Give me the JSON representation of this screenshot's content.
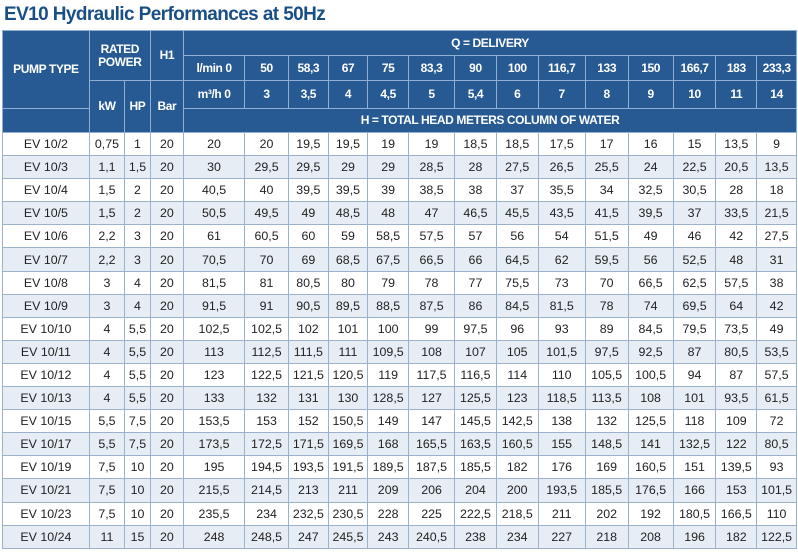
{
  "title": "EV10 Hydraulic Performances at 50Hz",
  "headers": {
    "pump_type": "PUMP TYPE",
    "rated_power": "RATED POWER",
    "h1": "H1",
    "delivery": "Q = DELIVERY",
    "lmin_label": "l/min 0",
    "m3h_label": "m³/h 0",
    "kw": "kW",
    "hp": "HP",
    "bar": "Bar",
    "head": "H = TOTAL HEAD METERS COLUMN OF WATER"
  },
  "flow_lmin": [
    "50",
    "58,3",
    "67",
    "75",
    "83,3",
    "90",
    "100",
    "116,7",
    "133",
    "150",
    "166,7",
    "183",
    "233,3"
  ],
  "flow_m3h": [
    "3",
    "3,5",
    "4",
    "4,5",
    "5",
    "5,4",
    "6",
    "7",
    "8",
    "9",
    "10",
    "11",
    "14"
  ],
  "rows": [
    [
      "EV 10/2",
      "0,75",
      "1",
      "20",
      "20",
      "20",
      "19,5",
      "19,5",
      "19",
      "19",
      "18,5",
      "18,5",
      "17,5",
      "17",
      "16",
      "15",
      "13,5",
      "9"
    ],
    [
      "EV 10/3",
      "1,1",
      "1,5",
      "20",
      "30",
      "29,5",
      "29,5",
      "29",
      "29",
      "28,5",
      "28",
      "27,5",
      "26,5",
      "25,5",
      "24",
      "22,5",
      "20,5",
      "13,5"
    ],
    [
      "EV 10/4",
      "1,5",
      "2",
      "20",
      "40,5",
      "40",
      "39,5",
      "39,5",
      "39",
      "38,5",
      "38",
      "37",
      "35,5",
      "34",
      "32,5",
      "30,5",
      "28",
      "18"
    ],
    [
      "EV 10/5",
      "1,5",
      "2",
      "20",
      "50,5",
      "49,5",
      "49",
      "48,5",
      "48",
      "47",
      "46,5",
      "45,5",
      "43,5",
      "41,5",
      "39,5",
      "37",
      "33,5",
      "21,5"
    ],
    [
      "EV 10/6",
      "2,2",
      "3",
      "20",
      "61",
      "60,5",
      "60",
      "59",
      "58,5",
      "57,5",
      "57",
      "56",
      "54",
      "51,5",
      "49",
      "46",
      "42",
      "27,5"
    ],
    [
      "EV 10/7",
      "2,2",
      "3",
      "20",
      "70,5",
      "70",
      "69",
      "68,5",
      "67,5",
      "66,5",
      "66",
      "64,5",
      "62",
      "59,5",
      "56",
      "52,5",
      "48",
      "31"
    ],
    [
      "EV 10/8",
      "3",
      "4",
      "20",
      "81,5",
      "81",
      "80,5",
      "80",
      "79",
      "78",
      "77",
      "75,5",
      "73",
      "70",
      "66,5",
      "62,5",
      "57,5",
      "38"
    ],
    [
      "EV 10/9",
      "3",
      "4",
      "20",
      "91,5",
      "91",
      "90,5",
      "89,5",
      "88,5",
      "87,5",
      "86",
      "84,5",
      "81,5",
      "78",
      "74",
      "69,5",
      "64",
      "42"
    ],
    [
      "EV 10/10",
      "4",
      "5,5",
      "20",
      "102,5",
      "102,5",
      "102",
      "101",
      "100",
      "99",
      "97,5",
      "96",
      "93",
      "89",
      "84,5",
      "79,5",
      "73,5",
      "49"
    ],
    [
      "EV 10/11",
      "4",
      "5,5",
      "20",
      "113",
      "112,5",
      "111,5",
      "111",
      "109,5",
      "108",
      "107",
      "105",
      "101,5",
      "97,5",
      "92,5",
      "87",
      "80,5",
      "53,5"
    ],
    [
      "EV 10/12",
      "4",
      "5,5",
      "20",
      "123",
      "122,5",
      "121,5",
      "120,5",
      "119",
      "117,5",
      "116,5",
      "114",
      "110",
      "105,5",
      "100,5",
      "94",
      "87",
      "57,5"
    ],
    [
      "EV 10/13",
      "4",
      "5,5",
      "20",
      "133",
      "132",
      "131",
      "130",
      "128,5",
      "127",
      "125,5",
      "123",
      "118,5",
      "113,5",
      "108",
      "101",
      "93,5",
      "61,5"
    ],
    [
      "EV 10/15",
      "5,5",
      "7,5",
      "20",
      "153,5",
      "153",
      "152",
      "150,5",
      "149",
      "147",
      "145,5",
      "142,5",
      "138",
      "132",
      "125,5",
      "118",
      "109",
      "72"
    ],
    [
      "EV 10/17",
      "5,5",
      "7,5",
      "20",
      "173,5",
      "172,5",
      "171,5",
      "169,5",
      "168",
      "165,5",
      "163,5",
      "160,5",
      "155",
      "148,5",
      "141",
      "132,5",
      "122",
      "80,5"
    ],
    [
      "EV 10/19",
      "7,5",
      "10",
      "20",
      "195",
      "194,5",
      "193,5",
      "191,5",
      "189,5",
      "187,5",
      "185,5",
      "182",
      "176",
      "169",
      "160,5",
      "151",
      "139,5",
      "93"
    ],
    [
      "EV 10/21",
      "7,5",
      "10",
      "20",
      "215,5",
      "214,5",
      "213",
      "211",
      "209",
      "206",
      "204",
      "200",
      "193,5",
      "185,5",
      "176,5",
      "166",
      "153",
      "101,5"
    ],
    [
      "EV 10/23",
      "7,5",
      "10",
      "20",
      "235,5",
      "234",
      "232,5",
      "230,5",
      "228",
      "225",
      "222,5",
      "218,5",
      "211",
      "202",
      "192",
      "180,5",
      "166,5",
      "110"
    ],
    [
      "EV 10/24",
      "11",
      "15",
      "20",
      "248",
      "248,5",
      "247",
      "245,5",
      "243",
      "240,5",
      "238",
      "234",
      "227",
      "218",
      "208",
      "196",
      "182",
      "122,5"
    ]
  ],
  "colors": {
    "header_bg": "#275a93",
    "header_text": "#ffffff",
    "title_text": "#1a4f86",
    "row_alt_bg": "#e6edf5",
    "row_bg": "#ffffff"
  }
}
